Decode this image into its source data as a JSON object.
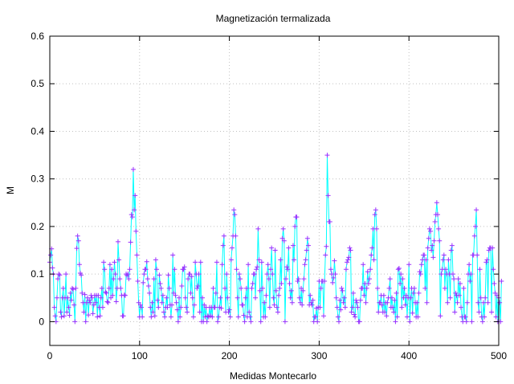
{
  "chart_data": {
    "type": "line",
    "title": "Magnetización termalizada",
    "xlabel": "Medidas Montecarlo",
    "ylabel": "M",
    "xlim": [
      0,
      500
    ],
    "ylim": [
      -0.05,
      0.6
    ],
    "x_ticks": [
      0,
      100,
      200,
      300,
      400,
      500
    ],
    "y_ticks": [
      0,
      0.1,
      0.2,
      0.3,
      0.4,
      0.5,
      0.6
    ],
    "x_tick_labels": [
      "0",
      "100",
      "200",
      "300",
      "400",
      "500"
    ],
    "y_tick_labels": [
      "0",
      "0.1",
      "0.2",
      "0.3",
      "0.4",
      "0.5",
      "0.6"
    ],
    "grid": true,
    "legend": "none",
    "colors": {
      "line": "#00ffff",
      "marker": "#9b30ff",
      "grid": "#c0c0c0",
      "axes": "#000000"
    },
    "marker": "+",
    "series": [
      {
        "values": [
          0.125,
          0.14,
          0.153,
          0.113,
          0.1,
          0.03,
          0.012,
          0.0,
          0.05,
          0.09,
          0.1,
          0.098,
          0.02,
          0.01,
          0.05,
          0.07,
          0.012,
          0.05,
          0.1,
          0.02,
          0.05,
          0.03,
          0.013,
          0.06,
          0.045,
          0.07,
          0.068,
          0.035,
          0.0,
          0.07,
          0.154,
          0.18,
          0.17,
          0.12,
          0.102,
          0.098,
          0.06,
          0.04,
          0.02,
          0.057,
          0.0,
          0.04,
          0.05,
          0.014,
          0.045,
          0.04,
          0.055,
          0.05,
          0.017,
          0.035,
          0.055,
          0.04,
          0.055,
          0.01,
          0.055,
          0.03,
          0.012,
          0.05,
          0.07,
          0.03,
          0.125,
          0.11,
          0.062,
          0.06,
          0.042,
          0.04,
          0.07,
          0.12,
          0.05,
          0.11,
          0.055,
          0.09,
          0.125,
          0.1,
          0.042,
          0.07,
          0.168,
          0.13,
          0.09,
          0.07,
          0.055,
          0.012,
          0.012,
          0.056,
          0.055,
          0.1,
          0.097,
          0.1,
          0.09,
          0.11,
          0.167,
          0.225,
          0.22,
          0.32,
          0.235,
          0.265,
          0.19,
          0.14,
          0.085,
          0.04,
          0.01,
          0.035,
          0.03,
          0.01,
          0.082,
          0.1,
          0.11,
          0.11,
          0.126,
          0.09,
          0.075,
          0.06,
          0.03,
          0.01,
          0.04,
          0.02,
          0.09,
          0.012,
          0.13,
          0.11,
          0.045,
          0.03,
          0.098,
          0.08,
          0.07,
          0.04,
          0.055,
          0.02,
          0.01,
          0.03,
          0.05,
          0.03,
          0.098,
          0.07,
          0.035,
          0.01,
          0.035,
          0.14,
          0.06,
          0.11,
          0.055,
          0.04,
          0.025,
          0.0,
          0.05,
          0.01,
          0.03,
          0.075,
          0.11,
          0.11,
          0.115,
          0.05,
          0.03,
          0.02,
          0.09,
          0.1,
          0.1,
          0.06,
          0.095,
          0.05,
          0.01,
          0.035,
          0.125,
          0.1,
          0.07,
          0.075,
          0.1,
          0.02,
          0.125,
          0.0,
          0.05,
          0.0,
          0.035,
          0.01,
          0.03,
          0.0,
          0.012,
          0.01,
          0.03,
          0.012,
          0.03,
          0.01,
          0.07,
          0.03,
          0.03,
          0.06,
          0.125,
          0.0,
          0.01,
          0.03,
          0.05,
          0.028,
          0.12,
          0.16,
          0.18,
          0.07,
          0.02,
          0.1,
          0.05,
          0.02,
          0.025,
          0.01,
          0.13,
          0.155,
          0.18,
          0.235,
          0.225,
          0.18,
          0.11,
          0.05,
          0.01,
          0.1,
          0.09,
          0.07,
          0.035,
          0.035,
          0.013,
          0.0,
          0.05,
          0.07,
          0.01,
          0.12,
          0.02,
          0.01,
          0.0,
          0.07,
          0.08,
          0.1,
          0.1,
          0.05,
          0.11,
          0.115,
          0.195,
          0.13,
          0.065,
          0.0,
          0.125,
          0.07,
          0.01,
          0.04,
          0.01,
          0.055,
          0.1,
          0.12,
          0.09,
          0.03,
          0.11,
          0.155,
          0.1,
          0.05,
          0.035,
          0.15,
          0.065,
          0.03,
          0.02,
          0.055,
          0.07,
          0.13,
          0.08,
          0.175,
          0.195,
          0.17,
          0.0,
          0.09,
          0.115,
          0.11,
          0.155,
          0.08,
          0.05,
          0.065,
          0.04,
          0.16,
          0.13,
          0.2,
          0.22,
          0.22,
          0.085,
          0.09,
          0.05,
          0.04,
          0.07,
          0.035,
          0.065,
          0.09,
          0.12,
          0.13,
          0.15,
          0.175,
          0.16,
          0.035,
          0.055,
          0.04,
          0.035,
          0.045,
          0.0,
          0.01,
          0.01,
          0.028,
          0.0,
          0.03,
          0.085,
          0.03,
          0.07,
          0.085,
          0.085,
          0.012,
          0.085,
          0.14,
          0.158,
          0.35,
          0.265,
          0.21,
          0.21,
          0.11,
          0.1,
          0.082,
          0.092,
          0.128,
          0.1,
          0.05,
          0.03,
          0.01,
          0.0,
          0.045,
          0.025,
          0.07,
          0.065,
          0.04,
          0.05,
          0.03,
          0.11,
          0.125,
          0.13,
          0.135,
          0.155,
          0.15,
          0.02,
          0.03,
          0.06,
          0.015,
          0.01,
          0.045,
          0.04,
          0.03,
          0.0,
          0.0,
          0.045,
          0.07,
          0.07,
          0.12,
          0.055,
          0.08,
          0.04,
          0.07,
          0.105,
          0.08,
          0.09,
          0.11,
          0.14,
          0.155,
          0.195,
          0.13,
          0.225,
          0.235,
          0.195,
          0.07,
          0.02,
          0.04,
          0.04,
          0.055,
          0.035,
          0.02,
          0.055,
          0.02,
          0.04,
          0.012,
          0.04,
          0.05,
          0.07,
          0.09,
          0.03,
          0.05,
          0.03,
          0.02,
          0.045,
          0.0,
          0.06,
          0.01,
          0.11,
          0.112,
          0.08,
          0.1,
          0.03,
          0.09,
          0.05,
          0.07,
          0.035,
          0.055,
          0.01,
          0.05,
          0.12,
          0.0,
          0.05,
          0.07,
          0.018,
          0.06,
          0.07,
          0.04,
          0.01,
          0.04,
          0.01,
          0.06,
          0.105,
          0.1,
          0.12,
          0.13,
          0.14,
          0.14,
          0.07,
          0.13,
          0.04,
          0.155,
          0.175,
          0.195,
          0.19,
          0.15,
          0.16,
          0.135,
          0.17,
          0.21,
          0.225,
          0.25,
          0.225,
          0.195,
          0.17,
          0.012,
          0.1,
          0.11,
          0.13,
          0.14,
          0.07,
          0.11,
          0.1,
          0.04,
          0.13,
          0.1,
          0.05,
          0.15,
          0.16,
          0.1,
          0.09,
          0.02,
          0.06,
          0.055,
          0.04,
          0.09,
          0.055,
          0.08,
          0.03,
          0.01,
          0.0,
          0.07,
          0.01,
          0.01,
          0.0,
          0.04,
          0.1,
          0.12,
          0.085,
          0.1,
          0.0,
          0.14,
          0.14,
          0.18,
          0.2,
          0.235,
          0.14,
          0.04,
          0.02,
          0.11,
          0.05,
          0.01,
          0.0,
          0.04,
          0.01,
          0.05,
          0.125,
          0.13,
          0.04,
          0.15,
          0.155,
          0.155,
          0.02,
          0.155,
          0.11,
          0.08,
          0.06,
          0.01,
          0.055,
          0.0,
          0.05,
          0.04,
          0.0,
          0.085
        ]
      }
    ]
  }
}
